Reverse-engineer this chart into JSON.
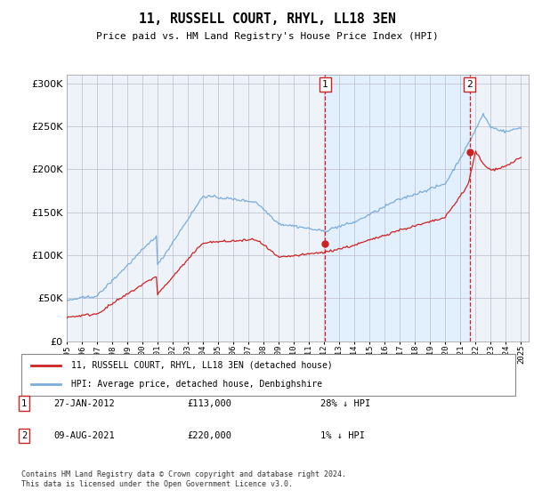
{
  "title": "11, RUSSELL COURT, RHYL, LL18 3EN",
  "subtitle": "Price paid vs. HM Land Registry's House Price Index (HPI)",
  "hpi_color": "#7aaddc",
  "price_color": "#cc2222",
  "shade_color": "#ddeeff",
  "background_color": "#f0f5ff",
  "plot_bg": "#eef3fa",
  "ylim": [
    0,
    310000
  ],
  "yticks": [
    0,
    50000,
    100000,
    150000,
    200000,
    250000,
    300000
  ],
  "xlim_start": 1995.0,
  "xlim_end": 2025.5,
  "marker1_x": 2012.07,
  "marker1_y": 113000,
  "marker2_x": 2021.6,
  "marker2_y": 220000,
  "marker1_date": "27-JAN-2012",
  "marker1_price": "£113,000",
  "marker1_note": "28% ↓ HPI",
  "marker2_date": "09-AUG-2021",
  "marker2_price": "£220,000",
  "marker2_note": "1% ↓ HPI",
  "legend_label1": "11, RUSSELL COURT, RHYL, LL18 3EN (detached house)",
  "legend_label2": "HPI: Average price, detached house, Denbighshire",
  "footer": "Contains HM Land Registry data © Crown copyright and database right 2024.\nThis data is licensed under the Open Government Licence v3.0."
}
